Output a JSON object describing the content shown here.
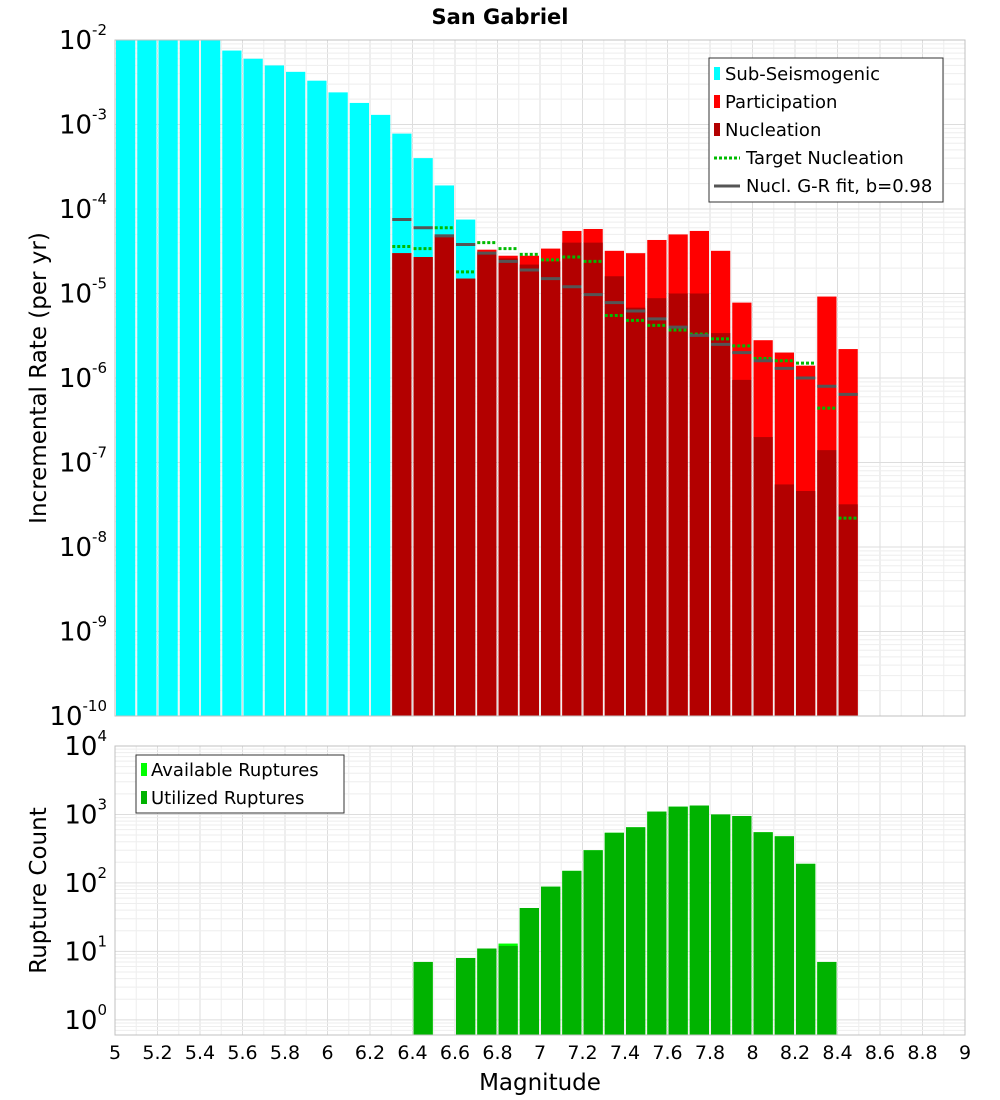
{
  "chart_data": [
    {
      "type": "bar",
      "title": "San Gabriel",
      "ylabel": "Incremental Rate (per yr)",
      "xlabel": "",
      "x_range": [
        5,
        9
      ],
      "ylim": [
        1e-10,
        0.01
      ],
      "y_scale": "log",
      "y_ticks": [
        {
          "value": 1e-10,
          "base": "10",
          "exp": "-10"
        },
        {
          "value": 1e-09,
          "base": "10",
          "exp": "-9"
        },
        {
          "value": 1e-08,
          "base": "10",
          "exp": "-8"
        },
        {
          "value": 1e-07,
          "base": "10",
          "exp": "-7"
        },
        {
          "value": 1e-06,
          "base": "10",
          "exp": "-6"
        },
        {
          "value": 1e-05,
          "base": "10",
          "exp": "-5"
        },
        {
          "value": 0.0001,
          "base": "10",
          "exp": "-4"
        },
        {
          "value": 0.001,
          "base": "10",
          "exp": "-3"
        },
        {
          "value": 0.01,
          "base": "10",
          "exp": "-2"
        }
      ],
      "grid": true,
      "legend_position": "top-right",
      "bin_width": 0.1,
      "series": [
        {
          "name": "Sub-Seismogenic",
          "color": "#00ffff",
          "style": "bar",
          "x": [
            5.05,
            5.15,
            5.25,
            5.35,
            5.45,
            5.55,
            5.65,
            5.75,
            5.85,
            5.95,
            6.05,
            6.15,
            6.25,
            6.35,
            6.45,
            6.55,
            6.65
          ],
          "values": [
            0.01,
            0.01,
            0.01,
            0.01,
            0.01,
            0.0075,
            0.006,
            0.005,
            0.0042,
            0.0033,
            0.0024,
            0.0018,
            0.0013,
            0.00078,
            0.0004,
            0.00019,
            7.5e-05
          ]
        },
        {
          "name": "Participation",
          "color": "#ff0000",
          "style": "bar",
          "x": [
            6.35,
            6.45,
            6.55,
            6.65,
            6.75,
            6.85,
            6.95,
            7.05,
            7.15,
            7.25,
            7.35,
            7.45,
            7.55,
            7.65,
            7.75,
            7.85,
            7.95,
            8.05,
            8.15,
            8.25,
            8.35,
            8.45
          ],
          "values": [
            3e-05,
            2.7e-05,
            5e-05,
            1.5e-05,
            3.3e-05,
            2.8e-05,
            2.8e-05,
            3.4e-05,
            5.5e-05,
            5.8e-05,
            3.2e-05,
            3e-05,
            4.3e-05,
            5e-05,
            5.5e-05,
            3.2e-05,
            7.8e-06,
            2.8e-06,
            2e-06,
            1.4e-06,
            9.2e-06,
            2.2e-06
          ]
        },
        {
          "name": "Nucleation",
          "color": "#b30000",
          "style": "bar",
          "x": [
            6.35,
            6.45,
            6.55,
            6.65,
            6.75,
            6.85,
            6.95,
            7.05,
            7.15,
            7.25,
            7.35,
            7.45,
            7.55,
            7.65,
            7.75,
            7.85,
            7.95,
            8.05,
            8.15,
            8.25,
            8.35,
            8.45
          ],
          "values": [
            3e-05,
            2.7e-05,
            4.8e-05,
            1.5e-05,
            3e-05,
            2.6e-05,
            2.2e-05,
            2.4e-05,
            4e-05,
            4e-05,
            1.6e-05,
            6.8e-06,
            8.8e-06,
            1e-05,
            1e-05,
            3.4e-06,
            9.5e-07,
            2e-07,
            5.5e-08,
            4.6e-08,
            1.4e-07,
            3.2e-08
          ]
        },
        {
          "name": "Target Nucleation",
          "color": "#00bb00",
          "style": "dotted-segment",
          "x": [
            6.35,
            6.45,
            6.55,
            6.65,
            6.75,
            6.85,
            6.95,
            7.05,
            7.15,
            7.25,
            7.35,
            7.45,
            7.55,
            7.65,
            7.75,
            7.85,
            7.95,
            8.05,
            8.15,
            8.25,
            8.35,
            8.45
          ],
          "values": [
            3.6e-05,
            3.4e-05,
            6e-05,
            1.8e-05,
            4e-05,
            3.4e-05,
            2.9e-05,
            2.5e-05,
            2.7e-05,
            2.4e-05,
            5.5e-06,
            4.8e-06,
            4.2e-06,
            3.7e-06,
            3.3e-06,
            2.9e-06,
            2.4e-06,
            1.7e-06,
            1.6e-06,
            1.5e-06,
            4.4e-07,
            2.2e-08
          ]
        },
        {
          "name": "Nucl. G-R fit, b=0.98",
          "color": "#555555",
          "style": "solid-segment",
          "x": [
            6.35,
            6.45,
            6.55,
            6.65,
            6.75,
            6.85,
            6.95,
            7.05,
            7.15,
            7.25,
            7.35,
            7.45,
            7.55,
            7.65,
            7.75,
            7.85,
            7.95,
            8.05,
            8.15,
            8.25,
            8.35,
            8.45
          ],
          "values": [
            7.5e-05,
            6e-05,
            4.8e-05,
            3.8e-05,
            3e-05,
            2.4e-05,
            1.9e-05,
            1.5e-05,
            1.2e-05,
            9.7e-06,
            7.8e-06,
            6.2e-06,
            5e-06,
            4e-06,
            3.2e-06,
            2.5e-06,
            2e-06,
            1.6e-06,
            1.3e-06,
            1e-06,
            8e-07,
            6.4e-07
          ]
        }
      ]
    },
    {
      "type": "bar",
      "title": "",
      "ylabel": "Rupture Count",
      "xlabel": "Magnitude",
      "x_range": [
        5,
        9
      ],
      "x_ticks": [
        "5",
        "5.2",
        "5.4",
        "5.6",
        "5.8",
        "6",
        "6.2",
        "6.4",
        "6.6",
        "6.8",
        "7",
        "7.2",
        "7.4",
        "7.6",
        "7.8",
        "8",
        "8.2",
        "8.4",
        "8.6",
        "8.8",
        "9"
      ],
      "ylim": [
        0.6,
        10000
      ],
      "y_scale": "log",
      "y_ticks": [
        {
          "value": 1,
          "base": "10",
          "exp": "0"
        },
        {
          "value": 10,
          "base": "10",
          "exp": "1"
        },
        {
          "value": 100,
          "base": "10",
          "exp": "2"
        },
        {
          "value": 1000,
          "base": "10",
          "exp": "3"
        },
        {
          "value": 10000,
          "base": "10",
          "exp": "4"
        }
      ],
      "grid": true,
      "legend_position": "top-left",
      "bin_width": 0.1,
      "series": [
        {
          "name": "Available Ruptures",
          "color": "#00ff00",
          "x": [
            6.45,
            6.65,
            6.75,
            6.85,
            6.95,
            7.05,
            7.15,
            7.25,
            7.35,
            7.45,
            7.55,
            7.65,
            7.75,
            7.85,
            7.95,
            8.05,
            8.15,
            8.25,
            8.35
          ],
          "values": [
            7,
            8,
            11,
            13,
            43,
            88,
            150,
            300,
            540,
            650,
            1100,
            1300,
            1350,
            1000,
            950,
            550,
            480,
            190,
            7
          ]
        },
        {
          "name": "Utilized Ruptures",
          "color": "#00b300",
          "x": [
            6.45,
            6.65,
            6.75,
            6.85,
            6.95,
            7.05,
            7.15,
            7.25,
            7.35,
            7.45,
            7.55,
            7.65,
            7.75,
            7.85,
            7.95,
            8.05,
            8.15,
            8.25,
            8.35
          ],
          "values": [
            7,
            8,
            11,
            12,
            43,
            88,
            150,
            300,
            540,
            650,
            1100,
            1300,
            1350,
            1000,
            950,
            550,
            480,
            190,
            7
          ]
        }
      ]
    }
  ]
}
